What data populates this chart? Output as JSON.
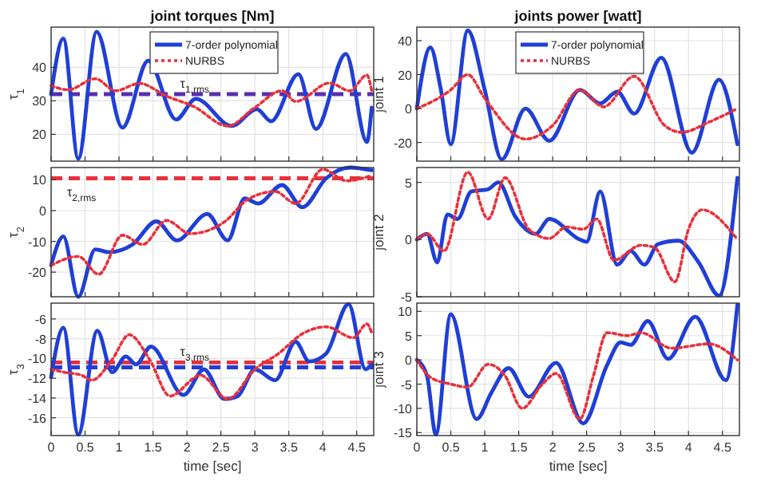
{
  "chart_data": [
    {
      "type": "line",
      "title": "joint torques [Nm]",
      "ylabel": "τ$_{1}$",
      "xlim": [
        0,
        4.75
      ],
      "ylim": [
        12,
        52
      ],
      "xticks": [
        0,
        0.5,
        1,
        1.5,
        2,
        2.5,
        3,
        3.5,
        4,
        4.5
      ],
      "yticks": [
        20,
        30,
        40
      ],
      "tick_labels": "y",
      "grid": true,
      "legend": "top right",
      "series": [
        {
          "name": "7-order polynomial",
          "color": "#1f3fd6",
          "line_style": "solid",
          "x": [
            0,
            0.18,
            0.4,
            0.67,
            1.05,
            1.43,
            1.84,
            2.13,
            2.66,
            3.03,
            3.24,
            3.64,
            3.9,
            4.34,
            4.65,
            4.72
          ],
          "values": [
            32,
            48.6,
            12.7,
            50.6,
            22,
            42,
            24.4,
            30.6,
            22.5,
            27.5,
            23.9,
            38,
            21.6,
            44,
            17.7,
            28
          ]
        },
        {
          "name": "NURBS",
          "color": "#e8303a",
          "line_style": "dotted",
          "x": [
            0,
            0.25,
            0.65,
            0.95,
            1.3,
            1.7,
            2.1,
            2.6,
            3.0,
            3.4,
            3.6,
            4.1,
            4.4,
            4.65,
            4.72
          ],
          "values": [
            34.5,
            33.3,
            36.6,
            33,
            35.2,
            31.4,
            28.3,
            22.5,
            28,
            33,
            29.8,
            35.3,
            33,
            37.7,
            33
          ]
        }
      ],
      "ref_lines": [
        {
          "axis": "y",
          "value": 32,
          "color": "#5a2fb0",
          "line_style": "dashed",
          "label": "τ$_{1,rms}$"
        }
      ]
    },
    {
      "type": "line",
      "ylabel": "τ$_{2}$",
      "xlim": [
        0,
        4.75
      ],
      "ylim": [
        -28,
        14
      ],
      "xticks": [
        0,
        0.5,
        1,
        1.5,
        2,
        2.5,
        3,
        3.5,
        4,
        4.5
      ],
      "yticks": [
        -20,
        -10,
        0,
        10
      ],
      "tick_labels": "y",
      "grid": true,
      "series": [
        {
          "color": "#1f3fd6",
          "line_style": "solid",
          "x": [
            0,
            0.18,
            0.4,
            0.65,
            0.85,
            1.2,
            1.55,
            1.85,
            2.3,
            2.6,
            2.85,
            3.05,
            3.4,
            3.7,
            4.05,
            4.4,
            4.72
          ],
          "values": [
            -17.8,
            -8.4,
            -28,
            -12.6,
            -13.5,
            -11,
            -3.5,
            -9.7,
            -1.1,
            -9.7,
            4,
            2.3,
            8.3,
            1.1,
            10.5,
            14,
            13.1
          ]
        },
        {
          "color": "#e8303a",
          "line_style": "dotted",
          "x": [
            0,
            0.4,
            0.7,
            1.05,
            1.35,
            1.7,
            2.05,
            2.55,
            2.9,
            3.3,
            3.6,
            4.0,
            4.35,
            4.72
          ],
          "values": [
            -17.8,
            -14.9,
            -20.7,
            -8,
            -11,
            -3.2,
            -7.5,
            -3.7,
            3.7,
            6.2,
            2.3,
            13.4,
            9.7,
            11.4
          ]
        }
      ],
      "ref_lines": [
        {
          "axis": "y",
          "value": 10.5,
          "color": "#e8303a",
          "line_style": "dashed",
          "label": "τ$_{2,rms}$"
        }
      ]
    },
    {
      "type": "line",
      "ylabel": "τ$_{3}$",
      "xlabel": "time [sec]",
      "xlim": [
        0,
        4.75
      ],
      "ylim": [
        -17.8,
        -4.4
      ],
      "xticks": [
        0,
        0.5,
        1,
        1.5,
        2,
        2.5,
        3,
        3.5,
        4,
        4.5
      ],
      "yticks": [
        -16,
        -14,
        -12,
        -10,
        -8,
        -6
      ],
      "grid": true,
      "series": [
        {
          "color": "#1f3fd6",
          "line_style": "solid",
          "x": [
            0,
            0.18,
            0.4,
            0.68,
            0.9,
            1.1,
            1.25,
            1.47,
            1.95,
            2.25,
            2.55,
            2.75,
            3.0,
            3.3,
            3.6,
            3.8,
            4.05,
            4.38,
            4.63,
            4.72
          ],
          "values": [
            -11.9,
            -6.9,
            -17.7,
            -7.2,
            -11.4,
            -9.8,
            -10.6,
            -8.8,
            -13.7,
            -11.1,
            -14.1,
            -13.8,
            -11.1,
            -12.2,
            -8.3,
            -10.3,
            -9.5,
            -4.5,
            -11.1,
            -10.6
          ]
        },
        {
          "color": "#e8303a",
          "line_style": "dotted",
          "x": [
            0,
            0.2,
            0.45,
            0.6,
            0.9,
            1.15,
            1.45,
            1.75,
            2.2,
            2.6,
            3.0,
            3.35,
            3.7,
            4.05,
            4.45,
            4.65,
            4.72
          ],
          "values": [
            -11.1,
            -11.4,
            -11.7,
            -12.2,
            -10.1,
            -7.6,
            -10.1,
            -13.8,
            -11.7,
            -14.1,
            -11.1,
            -9.5,
            -7.5,
            -6.8,
            -7.9,
            -6.5,
            -7.4
          ]
        }
      ],
      "ref_lines": [
        {
          "axis": "y",
          "value": -10.4,
          "color": "#e8303a",
          "line_style": "dashed",
          "label": "τ$_{3,rms}$"
        },
        {
          "axis": "y",
          "value": -10.9,
          "color": "#1f3fd6",
          "line_style": "dashed"
        }
      ]
    },
    {
      "type": "line",
      "title": "joints power [watt]",
      "ylabel": "joint 1",
      "xlim": [
        0,
        4.75
      ],
      "ylim": [
        -31,
        48
      ],
      "xticks": [
        0,
        0.5,
        1,
        1.5,
        2,
        2.5,
        3,
        3.5,
        4,
        4.5
      ],
      "yticks": [
        -20,
        0,
        20,
        40
      ],
      "tick_labels": "y",
      "grid": true,
      "legend": "top right",
      "series": [
        {
          "name": "7-order polynomial",
          "color": "#1f3fd6",
          "line_style": "solid",
          "x": [
            0,
            0.2,
            0.35,
            0.5,
            0.75,
            1.0,
            1.25,
            1.6,
            1.95,
            2.4,
            2.7,
            2.95,
            3.2,
            3.6,
            4.05,
            4.45,
            4.72
          ],
          "values": [
            0,
            36,
            12,
            -21,
            46,
            11,
            -30,
            0,
            -19,
            11,
            3,
            10,
            -3,
            30,
            -26,
            17,
            -21
          ]
        },
        {
          "name": "NURBS",
          "color": "#e8303a",
          "line_style": "dotted",
          "x": [
            0,
            0.5,
            0.75,
            1.0,
            1.6,
            2.0,
            2.4,
            2.75,
            3.2,
            3.65,
            3.9,
            4.3,
            4.72
          ],
          "values": [
            0,
            11,
            20,
            6,
            -18,
            -10,
            11,
            1,
            19,
            -10,
            -14,
            -8,
            0
          ]
        }
      ]
    },
    {
      "type": "line",
      "ylabel": "joint 2",
      "xlim": [
        0,
        4.75
      ],
      "ylim": [
        -5,
        6.3
      ],
      "xticks": [
        0,
        0.5,
        1,
        1.5,
        2,
        2.5,
        3,
        3.5,
        4,
        4.5
      ],
      "yticks": [
        -5,
        0,
        5
      ],
      "tick_labels": "y",
      "grid": true,
      "series": [
        {
          "color": "#1f3fd6",
          "line_style": "solid",
          "x": [
            0,
            0.15,
            0.3,
            0.45,
            0.6,
            0.8,
            1.05,
            1.2,
            1.45,
            1.75,
            1.95,
            2.4,
            2.5,
            2.7,
            2.95,
            3.15,
            3.35,
            3.55,
            3.85,
            4.15,
            4.45,
            4.72
          ],
          "values": [
            0,
            0.5,
            -2,
            2.2,
            1.8,
            4.2,
            4.4,
            5,
            2,
            0.5,
            1.8,
            0,
            -0.2,
            4.2,
            -2.2,
            -1,
            -2.2,
            -0.4,
            -0.1,
            -2,
            -4.9,
            5.4
          ]
        },
        {
          "color": "#e8303a",
          "line_style": "dotted",
          "x": [
            0,
            0.15,
            0.4,
            0.75,
            1.05,
            1.3,
            1.65,
            1.95,
            2.2,
            2.45,
            2.65,
            2.9,
            3.3,
            3.5,
            3.8,
            4.0,
            4.2,
            4.72
          ],
          "values": [
            0,
            0.5,
            -1,
            5.9,
            1.8,
            5.4,
            0.9,
            0.1,
            1.1,
            0.9,
            1.8,
            -1.8,
            -0.5,
            -0.7,
            -3.7,
            0.9,
            2.6,
            0
          ]
        }
      ]
    },
    {
      "type": "line",
      "ylabel": "joint 3",
      "xlabel": "time [sec]",
      "xlim": [
        0,
        4.75
      ],
      "ylim": [
        -15.6,
        11.7
      ],
      "xticks": [
        0,
        0.5,
        1,
        1.5,
        2,
        2.5,
        3,
        3.5,
        4,
        4.5
      ],
      "yticks": [
        -15,
        -10,
        -5,
        0,
        5,
        10
      ],
      "grid": true,
      "series": [
        {
          "color": "#1f3fd6",
          "line_style": "solid",
          "x": [
            0,
            0.15,
            0.28,
            0.5,
            0.88,
            1.1,
            1.35,
            1.65,
            2.05,
            2.45,
            2.8,
            3.0,
            3.15,
            3.4,
            3.7,
            4.1,
            4.55,
            4.72
          ],
          "values": [
            0,
            -3.3,
            -15.4,
            9.4,
            -12.2,
            -6.7,
            -1.7,
            -7.6,
            -0.6,
            -13.1,
            -1.1,
            3.6,
            3.1,
            8,
            0.2,
            8.9,
            -4.2,
            11.4
          ]
        },
        {
          "color": "#e8303a",
          "line_style": "dotted",
          "x": [
            0,
            0.2,
            0.5,
            0.75,
            1.05,
            1.3,
            1.55,
            1.85,
            2.05,
            2.4,
            2.6,
            2.8,
            3.1,
            3.3,
            3.75,
            4.3,
            4.72
          ],
          "values": [
            0,
            -3.6,
            -5,
            -5.6,
            -0.9,
            -3.3,
            -10,
            -5,
            -2.8,
            -12.2,
            -3.3,
            5.6,
            5,
            5.6,
            2.4,
            3.3,
            0
          ]
        }
      ]
    }
  ]
}
